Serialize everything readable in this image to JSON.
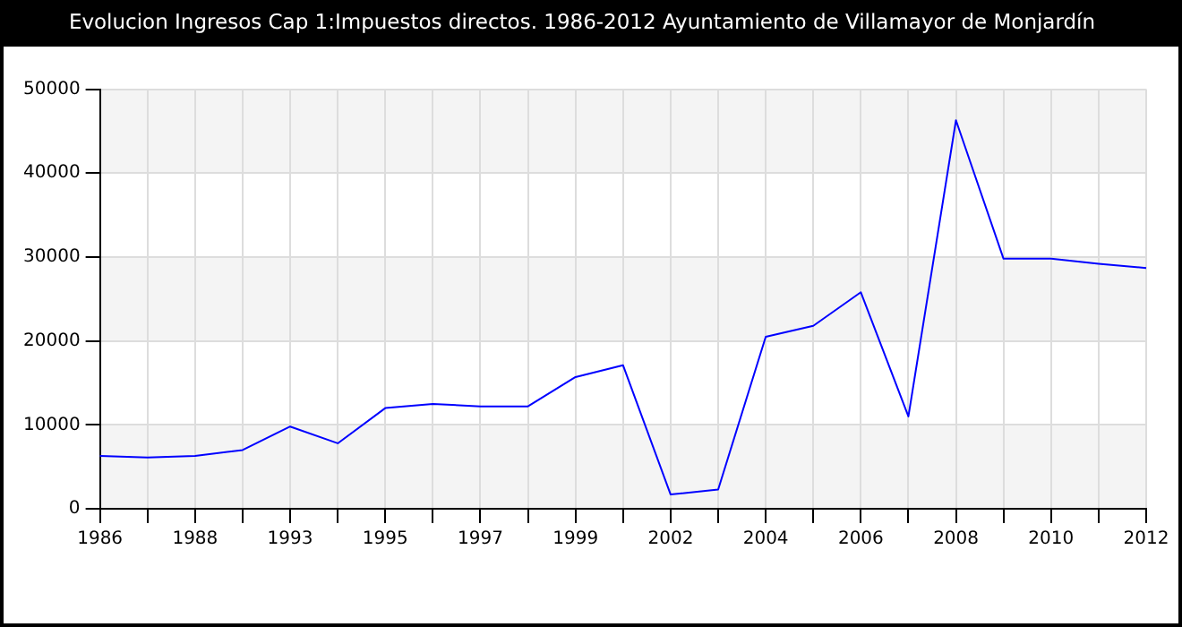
{
  "chart_data": {
    "type": "line",
    "title": "Evolucion Ingresos Cap 1:Impuestos directos. 1986-2012 Ayuntamiento de Villamayor de Monjardín",
    "categories": [
      "1986",
      null,
      "1988",
      null,
      "1993",
      null,
      "1995",
      null,
      "1997",
      null,
      "1999",
      null,
      "2002",
      null,
      "2004",
      null,
      "2006",
      null,
      "2008",
      null,
      "2010",
      null,
      "2012"
    ],
    "series": [
      {
        "color": "#0000ff",
        "values": [
          6300,
          6100,
          6300,
          7000,
          9800,
          7800,
          12000,
          12500,
          12200,
          12200,
          15700,
          17100,
          1700,
          2300,
          20500,
          21800,
          25800,
          11000,
          46300,
          29800,
          29800,
          29200,
          28700
        ]
      }
    ],
    "ylim": [
      0,
      50000
    ],
    "yticks": [
      0,
      10000,
      20000,
      30000,
      40000,
      50000
    ],
    "grid": true,
    "marker": "none",
    "line_style": "solid",
    "legend": false
  }
}
